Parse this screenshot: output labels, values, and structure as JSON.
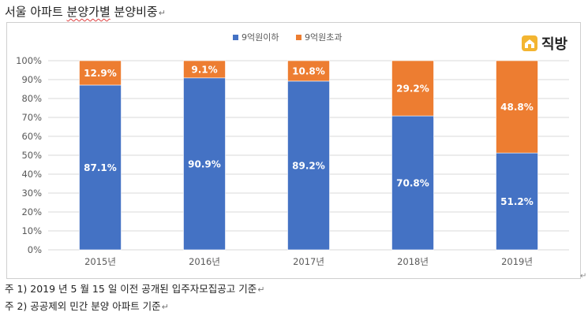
{
  "document": {
    "title_prefix": "서울 아파트 ",
    "title_underlined": "분양가별",
    "title_suffix": " 분양비중",
    "paragraph_mark": "↵"
  },
  "brand": {
    "name": "직방"
  },
  "notes": [
    "주 1) 2019 년 5 월 15 일 이전 공개된 입주자모집공고 기준",
    "주 2) 공공제외 민간 분양 아파트 기준"
  ],
  "chart_data": {
    "type": "bar",
    "stacked": true,
    "categories": [
      "2015년",
      "2016년",
      "2017년",
      "2018년",
      "2019년"
    ],
    "series": [
      {
        "name": "9억원이하",
        "values": [
          87.1,
          90.9,
          89.2,
          70.8,
          51.2
        ],
        "color": "#4472c4"
      },
      {
        "name": "9억원초과",
        "values": [
          12.9,
          9.1,
          10.8,
          29.2,
          48.8
        ],
        "color": "#ed7d31"
      }
    ],
    "value_format": "%",
    "ylim": [
      0,
      100
    ],
    "yticks": [
      "0%",
      "10%",
      "20%",
      "30%",
      "40%",
      "50%",
      "60%",
      "70%",
      "80%",
      "90%",
      "100%"
    ],
    "grid": true,
    "legend_position": "top"
  }
}
